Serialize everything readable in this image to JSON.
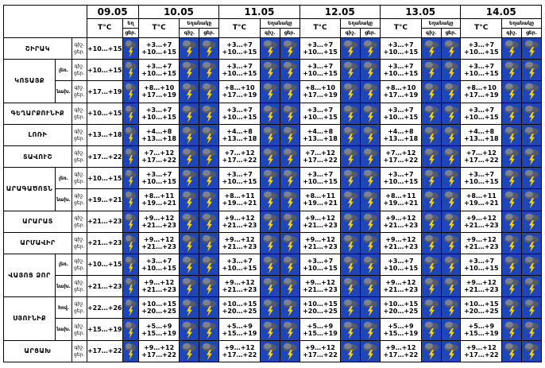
{
  "header": {
    "temp_label": "T°C",
    "weather_label": "Եղանակը",
    "day_label": "ցեր.",
    "night_label": "գիշ.",
    "day_label_col1": "ցեր.",
    "weather_label_col1": "Եղ"
  },
  "dates": [
    "09.05",
    "10.05",
    "11.05",
    "12.05",
    "13.05",
    "14.05"
  ],
  "period_labels": {
    "night": "գիշ.",
    "day": "ցեր."
  },
  "icons": {
    "night": "thunderstorm-icon",
    "day": "thunderstorm-icon"
  },
  "regions": [
    {
      "name": "ՇԻՐԱԿ",
      "rows": [
        {
          "sub": "",
          "day0": "+10…+15",
          "night": "+3…+7",
          "day": "+10…+15"
        }
      ]
    },
    {
      "name": "ԿՈՏԱՅՔ",
      "rows": [
        {
          "sub": "լեռ.",
          "day0": "+10…+15",
          "night": "+3…+7",
          "day": "+10…+15"
        },
        {
          "sub": "նախ.",
          "day0": "+17…+19",
          "night": "+8…+10",
          "day": "+17…+19"
        }
      ]
    },
    {
      "name": "ԳԵՂԱՐՔՈՒՆԻՔ",
      "rows": [
        {
          "sub": "",
          "day0": "+10…+15",
          "night": "+3…+7",
          "day": "+10…+15"
        }
      ]
    },
    {
      "name": "ԼՈՌԻ",
      "rows": [
        {
          "sub": "",
          "day0": "+13…+18",
          "night": "+4…+8",
          "day": "+13…+18"
        }
      ]
    },
    {
      "name": "ՏԱՎՈՒՇ",
      "rows": [
        {
          "sub": "",
          "day0": "+17…+22",
          "night": "+7…+12",
          "day": "+17…+22"
        }
      ]
    },
    {
      "name": "ԱՐԱԳԱԾՈՏՆ",
      "rows": [
        {
          "sub": "լեռ.",
          "day0": "+10…+15",
          "night": "+3…+7",
          "day": "+10…+15"
        },
        {
          "sub": "նախ.",
          "day0": "+19…+21",
          "night": "+8…+11",
          "day": "+19…+21"
        }
      ]
    },
    {
      "name": "ԱՐԱՐԱՏ",
      "rows": [
        {
          "sub": "",
          "day0": "+21…+23",
          "night": "+9…+12",
          "day": "+21…+23"
        }
      ]
    },
    {
      "name": "ԱՐՄԱՎԻՐ",
      "rows": [
        {
          "sub": "",
          "day0": "+21…+23",
          "night": "+9…+12",
          "day": "+21…+23"
        }
      ]
    },
    {
      "name": "ՎԱՅՈՑ ՁՈՐ",
      "rows": [
        {
          "sub": "լեռ.",
          "day0": "+10…+15",
          "night": "+3…+7",
          "day": "+10…+15"
        },
        {
          "sub": "նախ.",
          "day0": "+21…+23",
          "night": "+9…+12",
          "day": "+21…+23"
        }
      ]
    },
    {
      "name": "ՍՅՈՒՆԻՔ",
      "rows": [
        {
          "sub": "հով.",
          "day0": "+22…+26",
          "night": "+10…+15",
          "day": "+20…+25"
        },
        {
          "sub": "նախ.",
          "day0": "+15…+19",
          "night": "+5…+9",
          "day": "+15…+19"
        }
      ]
    },
    {
      "name": "ԱՐՑԱԽ",
      "rows": [
        {
          "sub": "",
          "day0": "+17…+22",
          "night": "+9…+12",
          "day": "+17…+22"
        }
      ]
    }
  ]
}
